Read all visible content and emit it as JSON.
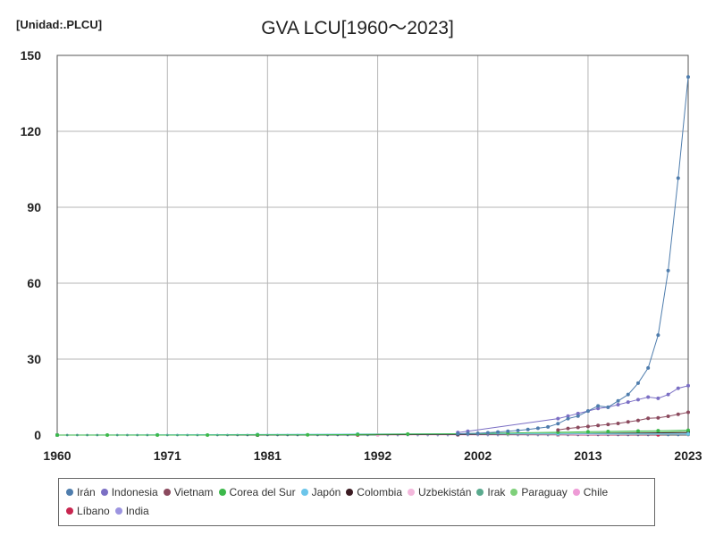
{
  "unit_label": "[Unidad:.PLCU]",
  "chart_data": {
    "type": "line",
    "title": "GVA LCU[1960〜2023]",
    "xlim": [
      1960,
      2023
    ],
    "ylim": [
      0,
      150
    ],
    "x_ticks": [
      1960,
      1971,
      1981,
      1992,
      2002,
      2013,
      2023
    ],
    "y_ticks": [
      0,
      30,
      60,
      90,
      120,
      150
    ],
    "grid": true,
    "legend_position": "bottom",
    "series": [
      {
        "name": "Irán",
        "color": "#4f7dad",
        "x": [
          2000,
          2001,
          2002,
          2003,
          2004,
          2005,
          2006,
          2007,
          2008,
          2009,
          2010,
          2011,
          2012,
          2013,
          2014,
          2015,
          2016,
          2017,
          2018,
          2019,
          2020,
          2021,
          2022,
          2023
        ],
        "y": [
          0.5,
          0.6,
          0.7,
          0.9,
          1.2,
          1.5,
          1.8,
          2.2,
          2.7,
          3.2,
          4.5,
          6.5,
          7.5,
          9.5,
          11.5,
          11.0,
          13.5,
          16.0,
          20.5,
          26.5,
          39.5,
          65.0,
          101.5,
          141.5
        ]
      },
      {
        "name": "Indonesia",
        "color": "#7b6fc4",
        "x": [
          2000,
          2001,
          2010,
          2011,
          2012,
          2013,
          2014,
          2015,
          2016,
          2017,
          2018,
          2019,
          2020,
          2021,
          2022,
          2023
        ],
        "y": [
          1.0,
          1.5,
          6.5,
          7.5,
          8.5,
          9.5,
          10.5,
          11.0,
          12.0,
          13.0,
          14.0,
          15.0,
          14.5,
          16.0,
          18.5,
          19.5
        ]
      },
      {
        "name": "Vietnam",
        "color": "#8b4a5e",
        "x": [
          2010,
          2011,
          2012,
          2013,
          2014,
          2015,
          2016,
          2017,
          2018,
          2019,
          2020,
          2021,
          2022,
          2023
        ],
        "y": [
          2.0,
          2.6,
          3.0,
          3.4,
          3.8,
          4.2,
          4.6,
          5.2,
          5.8,
          6.6,
          6.8,
          7.4,
          8.2,
          9.0
        ]
      },
      {
        "name": "Corea del Sur",
        "color": "#3cb84a",
        "x": [
          1960,
          1965,
          1970,
          1975,
          1980,
          1985,
          1990,
          1995,
          2000,
          2005,
          2010,
          2013,
          2015,
          2018,
          2020,
          2023
        ],
        "y": [
          0.0,
          0.0,
          0.0,
          0.0,
          0.1,
          0.1,
          0.2,
          0.4,
          0.5,
          0.8,
          1.1,
          1.3,
          1.4,
          1.6,
          1.7,
          1.9
        ]
      },
      {
        "name": "Japón",
        "color": "#6cc5ea",
        "x": [
          1960,
          1970,
          1980,
          1990,
          2000,
          2010,
          2023
        ],
        "y": [
          0.0,
          0.1,
          0.2,
          0.4,
          0.5,
          0.5,
          0.5
        ]
      },
      {
        "name": "Colombia",
        "color": "#3b1b22",
        "x": [
          1960,
          1980,
          2000,
          2010,
          2023
        ],
        "y": [
          0.0,
          0.0,
          0.2,
          0.4,
          1.0
        ]
      },
      {
        "name": "Uzbekistán",
        "color": "#f3b8dc",
        "x": [
          1992,
          2000,
          2010,
          2023
        ],
        "y": [
          0.0,
          0.0,
          0.1,
          0.6
        ]
      },
      {
        "name": "Irak",
        "color": "#5aaa8e",
        "x": [
          1960,
          1980,
          2000,
          2010,
          2023
        ],
        "y": [
          0.0,
          0.0,
          0.0,
          0.1,
          0.3
        ]
      },
      {
        "name": "Paraguay",
        "color": "#7fd07a",
        "x": [
          1960,
          1980,
          2000,
          2005,
          2010,
          2015,
          2020,
          2023
        ],
        "y": [
          0.0,
          0.0,
          0.1,
          0.4,
          0.7,
          0.9,
          1.1,
          1.4
        ]
      },
      {
        "name": "Chile",
        "color": "#ee9bd6",
        "x": [
          1960,
          1980,
          2000,
          2010,
          2023
        ],
        "y": [
          0.0,
          0.0,
          0.1,
          0.1,
          0.2
        ]
      },
      {
        "name": "Líbano",
        "color": "#c8264f",
        "x": [
          1960,
          1990,
          2000,
          2010,
          2020,
          2023
        ],
        "y": [
          0.0,
          0.0,
          0.0,
          0.0,
          0.1,
          0.4
        ]
      },
      {
        "name": "India",
        "color": "#9c94e0",
        "x": [
          1960,
          1980,
          2000,
          2010,
          2023
        ],
        "y": [
          0.0,
          0.0,
          0.0,
          0.0,
          0.2
        ]
      }
    ]
  }
}
